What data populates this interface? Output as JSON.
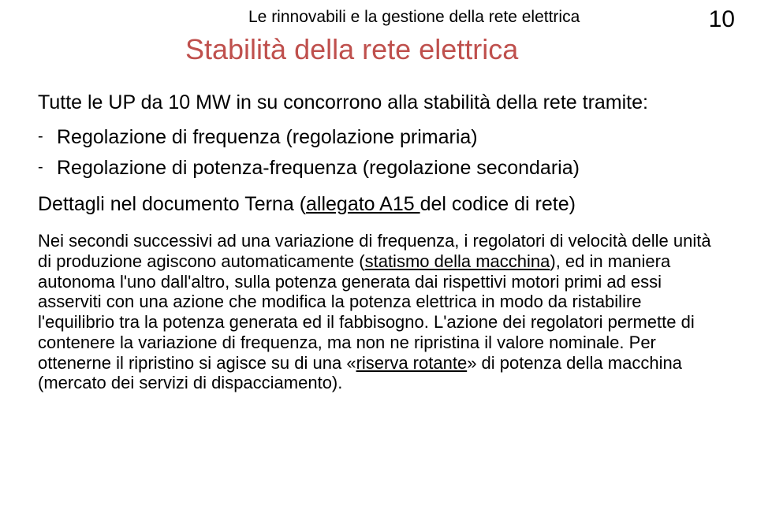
{
  "header": {
    "running_title": "Le rinnovabili e la gestione della rete elettrica",
    "page_number": "10"
  },
  "title": "Stabilità della rete elettrica",
  "intro_text": "Tutte le UP da 10 MW in su concorrono alla stabilità della rete tramite:",
  "bullets": {
    "b1": "Regolazione di frequenza (regolazione primaria)",
    "b2": "Regolazione di potenza-frequenza (regolazione secondaria)"
  },
  "sub_line": {
    "before": "Dettagli nel documento Terna (",
    "link": "allegato A15 ",
    "after": "del codice di rete)"
  },
  "paragraph": {
    "p1a": "Nei secondi successivi ad una variazione di frequenza, i regolatori di velocità delle unità di produzione agiscono automaticamente (",
    "p1_link": "statismo della macchina",
    "p1b": "), ed in maniera autonoma l'uno dall'altro, sulla potenza generata dai rispettivi motori primi ad essi asserviti con una azione che modifica la potenza elettrica in modo da ristabilire l'equilibrio tra la potenza generata ed il fabbisogno. L'azione dei regolatori permette di contenere la variazione di frequenza, ma non ne ripristina il valore nominale. Per ottenerne il ripristino si agisce su di una «",
    "p1_link2": "riserva rotante",
    "p1c": "» di potenza della macchina (mercato dei servizi di dispacciamento)."
  },
  "colors": {
    "title_color": "#bf504d",
    "text_color": "#000000",
    "background": "#ffffff"
  }
}
